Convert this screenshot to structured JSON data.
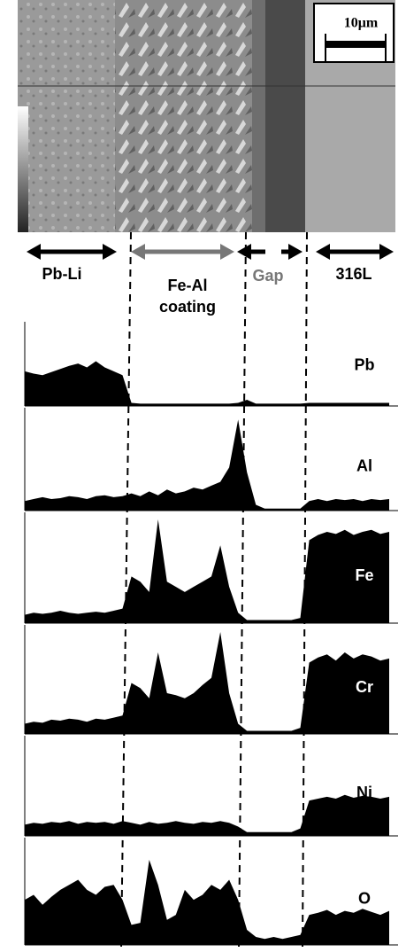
{
  "figure": {
    "scale_bar": "10μm",
    "regions": [
      "Pb-Li",
      "Fe-Al",
      "coating",
      "Gap",
      "316L"
    ],
    "panels": [
      {
        "label": "Pb",
        "profile": [
          45,
          42,
          40,
          44,
          48,
          52,
          55,
          50,
          58,
          50,
          45,
          40,
          4,
          3,
          3,
          3,
          3,
          3,
          3,
          3,
          3,
          3,
          3,
          3,
          4,
          8,
          3,
          3,
          3,
          3,
          3,
          3,
          4,
          4,
          4,
          4,
          4,
          4,
          4,
          4,
          4,
          4
        ]
      },
      {
        "label": "Al",
        "profile": [
          10,
          12,
          14,
          12,
          13,
          15,
          14,
          12,
          15,
          16,
          14,
          15,
          18,
          15,
          20,
          16,
          22,
          18,
          20,
          24,
          22,
          26,
          30,
          45,
          95,
          40,
          6,
          2,
          2,
          2,
          2,
          2,
          10,
          12,
          10,
          12,
          11,
          12,
          10,
          12,
          11,
          12
        ]
      },
      {
        "label": "Fe",
        "profile": [
          8,
          10,
          9,
          10,
          12,
          10,
          9,
          10,
          11,
          10,
          12,
          14,
          45,
          40,
          30,
          100,
          40,
          35,
          30,
          35,
          40,
          45,
          75,
          35,
          10,
          3,
          3,
          3,
          3,
          3,
          3,
          5,
          80,
          85,
          88,
          86,
          90,
          85,
          88,
          90,
          86,
          88
        ]
      },
      {
        "label": "Cr",
        "profile": [
          10,
          12,
          11,
          14,
          13,
          15,
          14,
          12,
          15,
          14,
          16,
          18,
          50,
          45,
          35,
          80,
          40,
          38,
          35,
          40,
          48,
          55,
          100,
          40,
          10,
          3,
          3,
          3,
          3,
          3,
          3,
          6,
          70,
          75,
          78,
          72,
          80,
          74,
          78,
          76,
          72,
          74
        ]
      },
      {
        "label": "Ni",
        "profile": [
          12,
          14,
          13,
          15,
          14,
          16,
          13,
          15,
          14,
          15,
          13,
          16,
          14,
          12,
          15,
          13,
          14,
          16,
          14,
          13,
          15,
          14,
          16,
          14,
          10,
          4,
          4,
          4,
          4,
          4,
          4,
          8,
          38,
          40,
          42,
          40,
          44,
          41,
          43,
          42,
          40,
          42
        ]
      },
      {
        "label": "O",
        "profile": [
          45,
          50,
          40,
          48,
          55,
          60,
          65,
          55,
          50,
          58,
          60,
          45,
          20,
          22,
          85,
          60,
          25,
          30,
          55,
          45,
          50,
          60,
          55,
          65,
          45,
          15,
          8,
          6,
          8,
          6,
          8,
          10,
          30,
          32,
          35,
          30,
          34,
          32,
          36,
          33,
          30,
          34
        ]
      }
    ]
  }
}
